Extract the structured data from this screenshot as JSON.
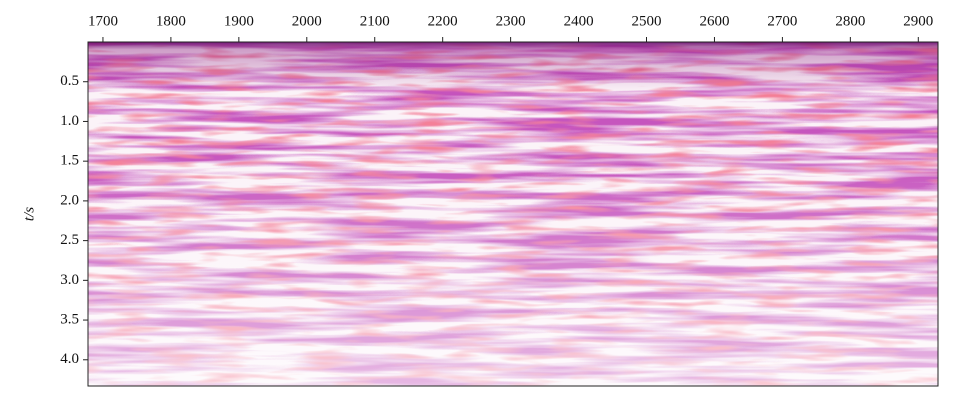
{
  "chart_data": {
    "type": "seismic-section",
    "ylabel": "t/s",
    "xlim": [
      1678,
      2929
    ],
    "xticks": [
      1700,
      1800,
      1900,
      2000,
      2100,
      2200,
      2300,
      2400,
      2500,
      2600,
      2700,
      2800,
      2900
    ],
    "ylim": [
      0,
      4.33
    ],
    "yticks": [
      {
        "value": 0.5,
        "label": "0.5"
      },
      {
        "value": 1.0,
        "label": "1.0"
      },
      {
        "value": 1.5,
        "label": "1.5"
      },
      {
        "value": 2.0,
        "label": "2.0"
      },
      {
        "value": 2.5,
        "label": "2.5"
      },
      {
        "value": 3.0,
        "label": "3.0"
      },
      {
        "value": 3.5,
        "label": "3.5"
      },
      {
        "value": 4.0,
        "label": "4.0"
      }
    ],
    "y_inverted": true,
    "x_axis_position": "top"
  }
}
